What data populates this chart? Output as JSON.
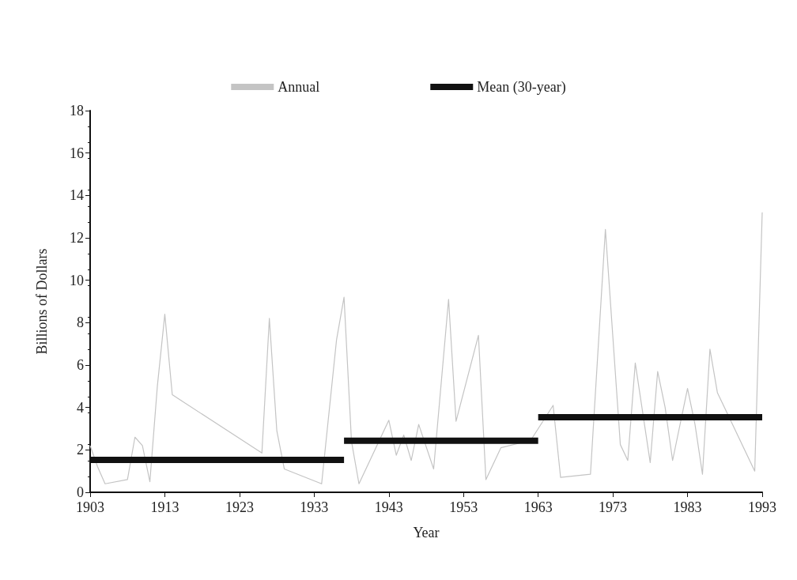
{
  "chart_data": {
    "type": "line",
    "xlabel": "Year",
    "ylabel": "Billions of Dollars",
    "xlim": [
      1903,
      1993
    ],
    "xticks": [
      1903,
      1913,
      1923,
      1933,
      1943,
      1953,
      1963,
      1973,
      1983,
      1993
    ],
    "ylim": [
      0,
      18
    ],
    "yticks": [
      0,
      2,
      4,
      6,
      8,
      10,
      12,
      14,
      16,
      18
    ],
    "grid": false,
    "legend": "top",
    "marker": "none",
    "line_style": "solid",
    "series": [
      {
        "name": "Annual",
        "color": "#c4c4c4",
        "x": [
          1903,
          1904,
          1905,
          1908,
          1909,
          1910,
          1911,
          1912,
          1913,
          1914,
          1926,
          1927,
          1928,
          1929,
          1934,
          1936,
          1937,
          1938,
          1939,
          1943,
          1944,
          1945,
          1946,
          1947,
          1949,
          1951,
          1952,
          1955,
          1956,
          1958,
          1962,
          1965,
          1966,
          1970,
          1972,
          1974,
          1975,
          1976,
          1978,
          1979,
          1980,
          1981,
          1983,
          1984,
          1985,
          1986,
          1987,
          1992,
          1993
        ],
        "values": [
          2.2,
          1.2,
          0.4,
          0.6,
          2.6,
          2.2,
          0.5,
          5.0,
          8.4,
          4.6,
          1.85,
          8.2,
          2.9,
          1.1,
          0.4,
          7.2,
          9.2,
          2.4,
          0.4,
          3.4,
          1.75,
          2.7,
          1.5,
          3.2,
          1.1,
          9.1,
          3.35,
          7.4,
          0.6,
          2.1,
          2.45,
          4.1,
          0.7,
          0.85,
          12.4,
          2.25,
          1.5,
          6.1,
          1.4,
          5.7,
          4.0,
          1.5,
          4.9,
          3.2,
          0.85,
          6.75,
          4.7,
          1.0,
          13.2
        ]
      },
      {
        "name": "Mean (30-year)",
        "color": "#111111",
        "x": [
          1903,
          1937
        ],
        "values": [
          1.53,
          1.53
        ]
      },
      {
        "color": "#111111",
        "x": [
          1937,
          1963
        ],
        "values": [
          2.43,
          2.43
        ]
      },
      {
        "color": "#111111",
        "x": [
          1963,
          1993
        ],
        "values": [
          3.54,
          3.54
        ]
      }
    ]
  }
}
